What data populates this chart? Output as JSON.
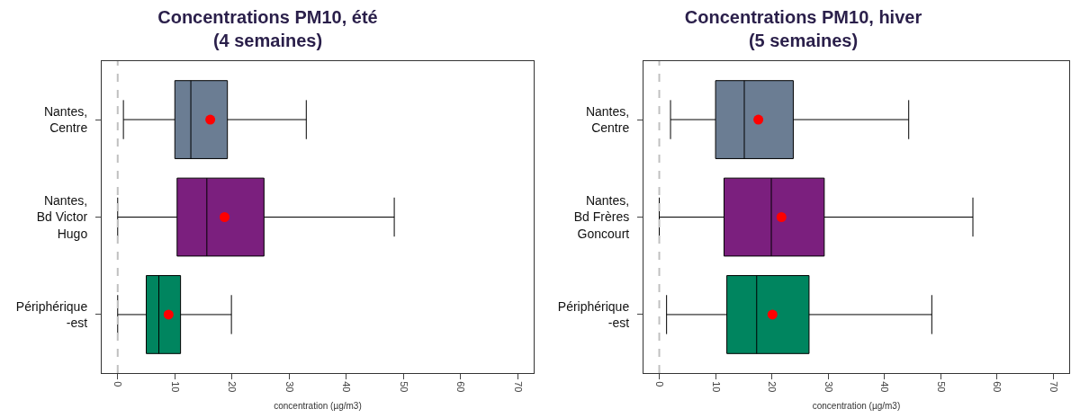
{
  "chart_data": [
    {
      "type": "box",
      "title": "Concentrations PM10, été\n(4 semaines)",
      "xlabel": "concentration (µg/m3)",
      "orientation": "horizontal",
      "categories": [
        "Nantes,\nCentre",
        "Nantes,\nBd Victor\nHugo",
        "Périphérique\n-est"
      ],
      "colors": [
        "#6b7d93",
        "#7b1f7e",
        "#00855f"
      ],
      "boxes": [
        {
          "low": 1,
          "q1": 10,
          "median": 12.8,
          "q3": 19.2,
          "high": 33,
          "mean": 16.2
        },
        {
          "low": 0,
          "q1": 10.4,
          "median": 15.6,
          "q3": 25.6,
          "high": 48.4,
          "mean": 18.7
        },
        {
          "low": 0,
          "q1": 5,
          "median": 7.2,
          "q3": 11,
          "high": 19.9,
          "mean": 8.9
        }
      ],
      "xlim": [
        -2.8,
        72.8
      ],
      "xticks": [
        0,
        10,
        20,
        30,
        40,
        50,
        60,
        70
      ],
      "grid": false,
      "legend": false,
      "ref_lines": [
        {
          "axis": "x",
          "value": 0,
          "color": "#c0c0c0",
          "line_style": "dashed"
        }
      ]
    },
    {
      "type": "box",
      "title": "Concentrations PM10, hiver\n(5 semaines)",
      "xlabel": "concentration (µg/m3)",
      "orientation": "horizontal",
      "categories": [
        "Nantes,\nCentre",
        "Nantes,\nBd Frères\nGoncourt",
        "Périphérique\n-est"
      ],
      "colors": [
        "#6b7d93",
        "#7b1f7e",
        "#00855f"
      ],
      "boxes": [
        {
          "low": 2,
          "q1": 10,
          "median": 15.1,
          "q3": 23.8,
          "high": 44.3,
          "mean": 17.6
        },
        {
          "low": 0,
          "q1": 11.5,
          "median": 19.9,
          "q3": 29.3,
          "high": 55.7,
          "mean": 21.7
        },
        {
          "low": 1.3,
          "q1": 12,
          "median": 17.3,
          "q3": 26.6,
          "high": 48.4,
          "mean": 20.1
        }
      ],
      "xlim": [
        -2.8,
        72.8
      ],
      "xticks": [
        0,
        10,
        20,
        30,
        40,
        50,
        60,
        70
      ],
      "grid": false,
      "legend": false,
      "ref_lines": [
        {
          "axis": "x",
          "value": 0,
          "color": "#c0c0c0",
          "line_style": "dashed"
        }
      ]
    }
  ]
}
